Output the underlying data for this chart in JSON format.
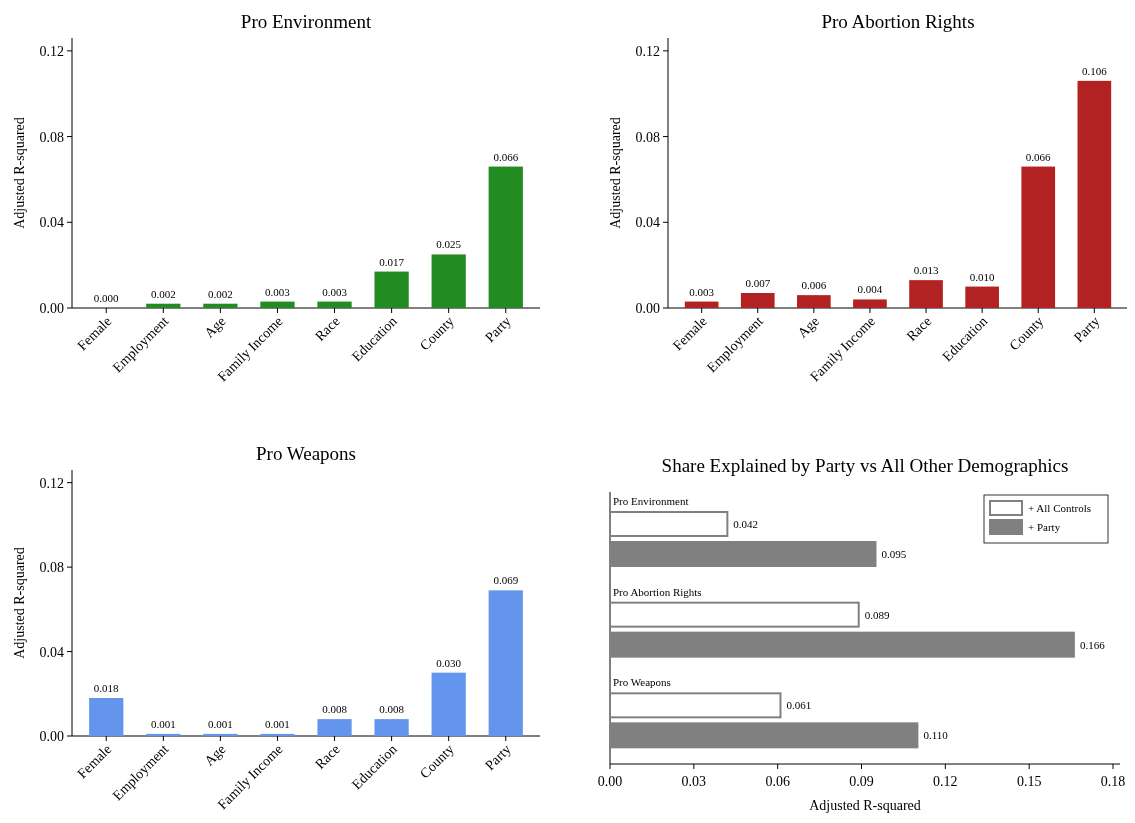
{
  "chart_data": [
    {
      "type": "bar",
      "title": "Pro Environment",
      "ylabel": "Adjusted R-squared",
      "categories": [
        "Female",
        "Employment",
        "Age",
        "Family Income",
        "Race",
        "Education",
        "County",
        "Party"
      ],
      "values": [
        0.0,
        0.002,
        0.002,
        0.003,
        0.003,
        0.017,
        0.025,
        0.066
      ],
      "value_labels": [
        "0.000",
        "0.002",
        "0.002",
        "0.003",
        "0.003",
        "0.017",
        "0.025",
        "0.066"
      ],
      "color": "#228b22",
      "ylim": [
        0,
        0.126
      ],
      "yticks": [
        {
          "value": 0,
          "label": "0.00"
        },
        {
          "value": 0.04,
          "label": "0.04"
        },
        {
          "value": 0.08,
          "label": "0.08"
        },
        {
          "value": 0.12,
          "label": "0.12"
        }
      ]
    },
    {
      "type": "bar",
      "title": "Pro Abortion Rights",
      "ylabel": "Adjusted R-squared",
      "categories": [
        "Female",
        "Employment",
        "Age",
        "Family Income",
        "Race",
        "Education",
        "County",
        "Party"
      ],
      "values": [
        0.003,
        0.007,
        0.006,
        0.004,
        0.013,
        0.01,
        0.066,
        0.106
      ],
      "value_labels": [
        "0.003",
        "0.007",
        "0.006",
        "0.004",
        "0.013",
        "0.010",
        "0.066",
        "0.106"
      ],
      "color": "#b22222",
      "ylim": [
        0,
        0.126
      ],
      "yticks": [
        {
          "value": 0,
          "label": "0.00"
        },
        {
          "value": 0.04,
          "label": "0.04"
        },
        {
          "value": 0.08,
          "label": "0.08"
        },
        {
          "value": 0.12,
          "label": "0.12"
        }
      ]
    },
    {
      "type": "bar",
      "title": "Pro Weapons",
      "ylabel": "Adjusted R-squared",
      "categories": [
        "Female",
        "Employment",
        "Age",
        "Family Income",
        "Race",
        "Education",
        "County",
        "Party"
      ],
      "values": [
        0.018,
        0.001,
        0.001,
        0.001,
        0.008,
        0.008,
        0.03,
        0.069
      ],
      "value_labels": [
        "0.018",
        "0.001",
        "0.001",
        "0.001",
        "0.008",
        "0.008",
        "0.030",
        "0.069"
      ],
      "color": "#6495ed",
      "ylim": [
        0,
        0.126
      ],
      "yticks": [
        {
          "value": 0,
          "label": "0.00"
        },
        {
          "value": 0.04,
          "label": "0.04"
        },
        {
          "value": 0.08,
          "label": "0.08"
        },
        {
          "value": 0.12,
          "label": "0.12"
        }
      ]
    },
    {
      "type": "bar",
      "orientation": "horizontal",
      "title": "Share Explained by Party vs All Other Demographics",
      "xlabel": "Adjusted R-squared",
      "categories": [
        "Pro Environment",
        "Pro Abortion Rights",
        "Pro Weapons"
      ],
      "series": [
        {
          "name": "+ All Controls",
          "color": "#ffffff",
          "values": [
            0.042,
            0.089,
            0.061
          ],
          "value_labels": [
            "0.042",
            "0.089",
            "0.061"
          ]
        },
        {
          "name": "+ Party",
          "color": "#808080",
          "values": [
            0.095,
            0.166,
            0.11
          ],
          "value_labels": [
            "0.095",
            "0.166",
            "0.110"
          ]
        }
      ],
      "legend": "top right",
      "xlim": [
        0,
        0.1825
      ],
      "xticks": [
        {
          "value": 0,
          "label": "0.00"
        },
        {
          "value": 0.03,
          "label": "0.03"
        },
        {
          "value": 0.06,
          "label": "0.06"
        },
        {
          "value": 0.09,
          "label": "0.09"
        },
        {
          "value": 0.12,
          "label": "0.12"
        },
        {
          "value": 0.15,
          "label": "0.15"
        },
        {
          "value": 0.18,
          "label": "0.18"
        }
      ]
    }
  ]
}
